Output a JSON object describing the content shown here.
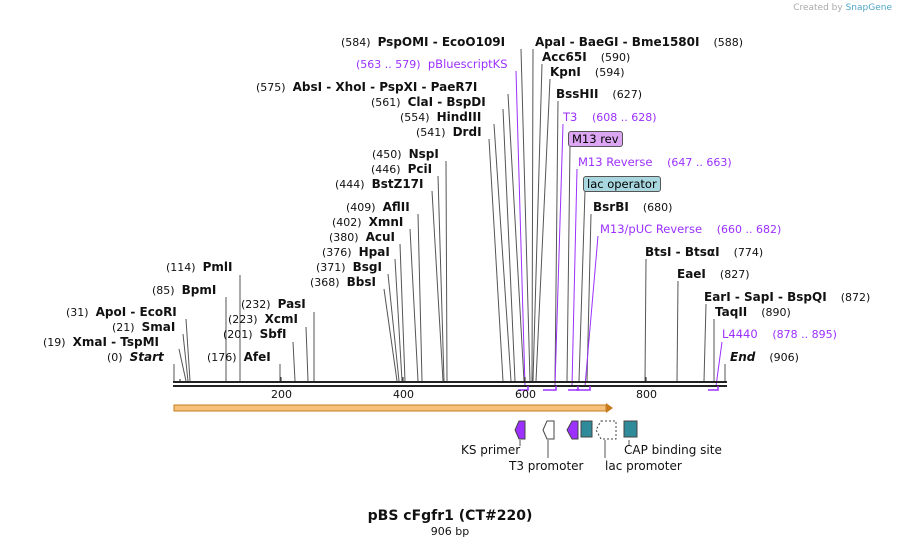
{
  "credit": {
    "prefix": "Created by",
    "brand": "SnapGene"
  },
  "title": "pBS cFgfr1 (CT#220)",
  "length": "906 bp",
  "ticks": [
    "200",
    "400",
    "600",
    "800"
  ],
  "sites": [
    {
      "pos": "(0)",
      "name": "Start"
    },
    {
      "pos": "(19)",
      "name": "XmaI  -  TspMI"
    },
    {
      "pos": "(21)",
      "name": "SmaI"
    },
    {
      "pos": "(31)",
      "name": "ApoI  -  EcoRI"
    },
    {
      "pos": "(85)",
      "name": "BpmI"
    },
    {
      "pos": "(114)",
      "name": "PmlI"
    },
    {
      "pos": "(176)",
      "name": "AfeI"
    },
    {
      "pos": "(201)",
      "name": "SbfI"
    },
    {
      "pos": "(223)",
      "name": "XcmI"
    },
    {
      "pos": "(232)",
      "name": "PasI"
    },
    {
      "pos": "(368)",
      "name": "BbsI"
    },
    {
      "pos": "(371)",
      "name": "BsgI"
    },
    {
      "pos": "(376)",
      "name": "HpaI"
    },
    {
      "pos": "(380)",
      "name": "AcuI"
    },
    {
      "pos": "(402)",
      "name": "XmnI"
    },
    {
      "pos": "(409)",
      "name": "AflII"
    },
    {
      "pos": "(444)",
      "name": "BstZ17I"
    },
    {
      "pos": "(446)",
      "name": "PciI"
    },
    {
      "pos": "(450)",
      "name": "NspI"
    },
    {
      "pos": "(541)",
      "name": "DrdI"
    },
    {
      "pos": "(554)",
      "name": "HindIII"
    },
    {
      "pos": "(561)",
      "name": "ClaI  -  BspDI"
    },
    {
      "pos": "(575)",
      "name": "AbsI  -  XhoI  -  PspXI  -  PaeR7I"
    },
    {
      "pos": "(584)",
      "name": "PspOMI  -  EcoO109I"
    },
    {
      "pos": "(588)",
      "name": "ApaI  -  BaeGI  -  Bme1580I"
    },
    {
      "pos": "(590)",
      "name": "Acc65I"
    },
    {
      "pos": "(594)",
      "name": "KpnI"
    },
    {
      "pos": "(627)",
      "name": "BssHII"
    },
    {
      "pos": "(680)",
      "name": "BsrBI"
    },
    {
      "pos": "(774)",
      "name": "BtsI  -  BtsαI"
    },
    {
      "pos": "(827)",
      "name": "EaeI"
    },
    {
      "pos": "(872)",
      "name": "EarI  -  SapI  -  BspQI"
    },
    {
      "pos": "(890)",
      "name": "TaqII"
    },
    {
      "pos": "(906)",
      "name": "End"
    }
  ],
  "primers": [
    {
      "name": "pBluescriptKS",
      "range": "(563 .. 579)"
    },
    {
      "name": "T3",
      "range": "(608 .. 628)"
    },
    {
      "name": "M13 Reverse",
      "range": "(647 .. 663)"
    },
    {
      "name": "M13/pUC Reverse",
      "range": "(660 .. 682)"
    },
    {
      "name": "L4440",
      "range": "(878 .. 895)"
    }
  ],
  "boxed": [
    {
      "name": "M13 rev"
    },
    {
      "name": "lac operator"
    }
  ],
  "features": [
    {
      "name": "KS primer"
    },
    {
      "name": "T3 promoter"
    },
    {
      "name": "lac promoter"
    },
    {
      "name": "CAP binding site"
    }
  ],
  "colors": {
    "primer": "#9b30ff",
    "feature_box": "#2f8a99",
    "orf_fill": "#f5c07a",
    "orf_stroke": "#c77b1c",
    "backbone": "#222222"
  }
}
